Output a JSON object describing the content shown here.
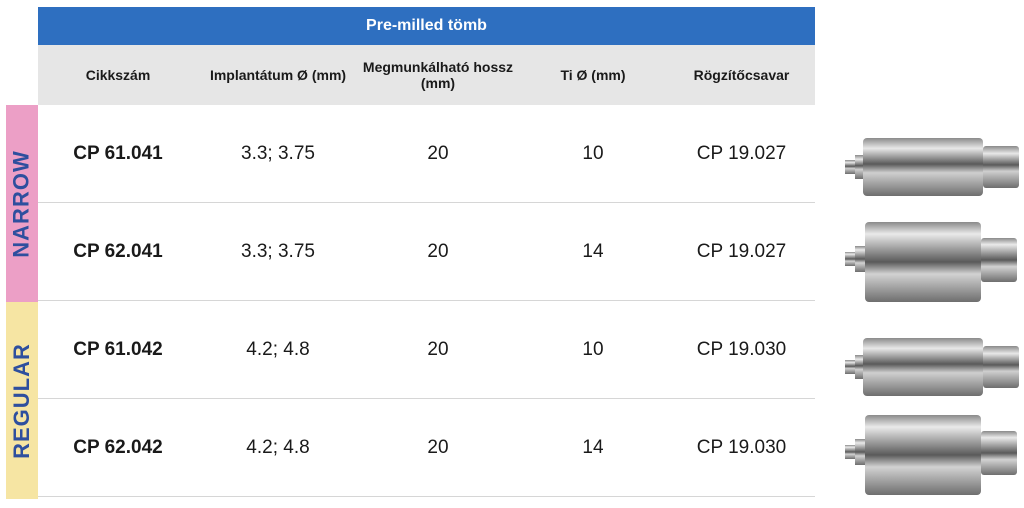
{
  "table": {
    "title": "Pre-milled tömb",
    "headers": [
      "Cikkszám",
      "Implantátum Ø (mm)",
      "Megmunkálható hossz (mm)",
      "Ti Ø (mm)",
      "Rögzítőcsavar"
    ],
    "groups": [
      {
        "label": "NARROW",
        "color": "#ec9fc6"
      },
      {
        "label": "REGULAR",
        "color": "#f6e5a3"
      }
    ],
    "rows": [
      {
        "code": "CP 61.041",
        "implant": "3.3; 3.75",
        "length": "20",
        "ti": "10",
        "screw": "CP 19.027"
      },
      {
        "code": "CP 62.041",
        "implant": "3.3; 3.75",
        "length": "20",
        "ti": "14",
        "screw": "CP 19.027"
      },
      {
        "code": "CP 61.042",
        "implant": "4.2; 4.8",
        "length": "20",
        "ti": "10",
        "screw": "CP 19.030"
      },
      {
        "code": "CP 62.042",
        "implant": "4.2; 4.8",
        "length": "20",
        "ti": "14",
        "screw": "CP 19.030"
      }
    ]
  }
}
